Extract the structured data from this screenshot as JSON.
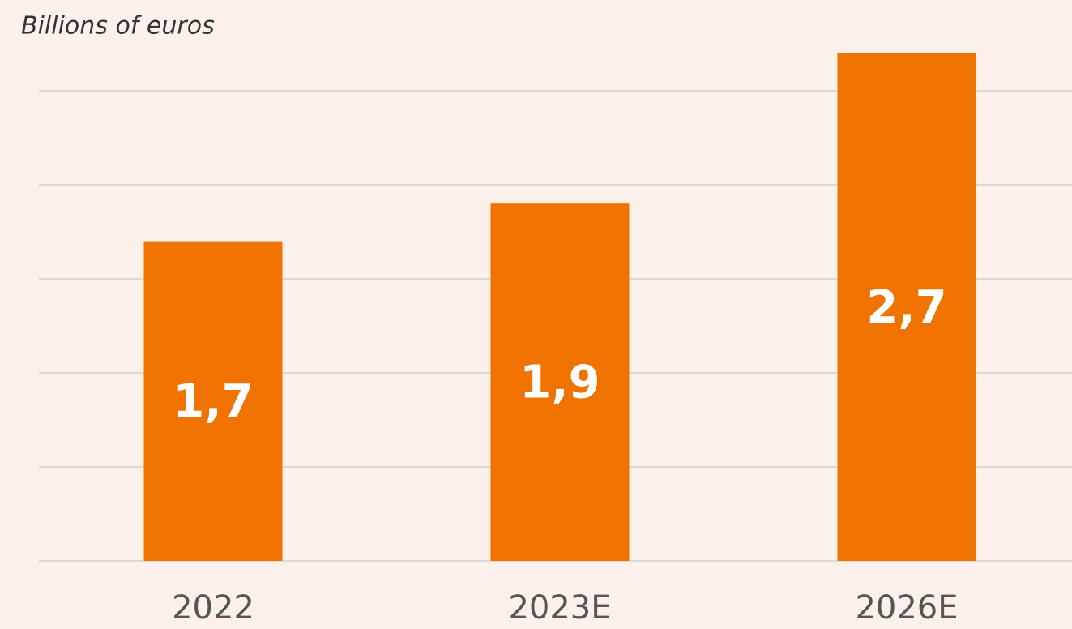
{
  "chart_data": {
    "type": "bar",
    "subtitle": "Billions of euros",
    "categories": [
      "2022",
      "2023E",
      "2026E"
    ],
    "values": [
      1.7,
      1.9,
      2.7
    ],
    "value_labels": [
      "1,7",
      "1,9",
      "2,7"
    ],
    "color": "#f07300",
    "ylim": [
      0,
      2.5
    ],
    "yticks": [
      0,
      0.5,
      1,
      1.5,
      2,
      2.5
    ],
    "grid": true
  }
}
